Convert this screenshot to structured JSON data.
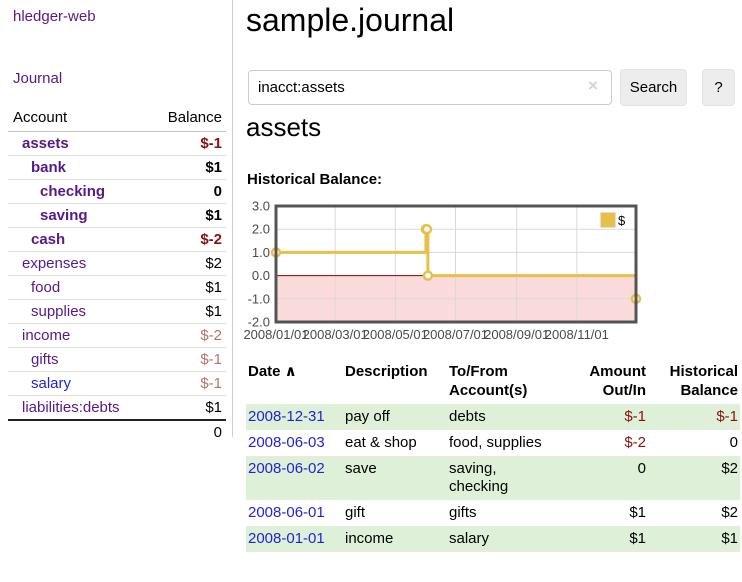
{
  "app": {
    "brand": "hledger-web",
    "nav_journal": "Journal"
  },
  "icons": {
    "clear": "×",
    "sort_asc": "∧"
  },
  "sidebar": {
    "header": {
      "account": "Account",
      "balance": "Balance"
    },
    "rows": [
      {
        "account": "assets",
        "balance": "$-1",
        "indent": 1,
        "bold": true,
        "balance_class": "neg",
        "link_class": "purple"
      },
      {
        "account": "bank",
        "balance": "$1",
        "indent": 2,
        "bold": true,
        "balance_class": "",
        "link_class": "purple"
      },
      {
        "account": "checking",
        "balance": "0",
        "indent": 3,
        "bold": true,
        "balance_class": "",
        "link_class": "purple"
      },
      {
        "account": "saving",
        "balance": "$1",
        "indent": 3,
        "bold": true,
        "balance_class": "",
        "link_class": "purple"
      },
      {
        "account": "cash",
        "balance": "$-2",
        "indent": 2,
        "bold": true,
        "balance_class": "neg",
        "link_class": "purple"
      },
      {
        "account": "expenses",
        "balance": "$2",
        "indent": 1,
        "bold": false,
        "balance_class": "",
        "link_class": "purple"
      },
      {
        "account": "food",
        "balance": "$1",
        "indent": 2,
        "bold": false,
        "balance_class": "",
        "link_class": "purple"
      },
      {
        "account": "supplies",
        "balance": "$1",
        "indent": 2,
        "bold": false,
        "balance_class": "",
        "link_class": "purple"
      },
      {
        "account": "income",
        "balance": "$-2",
        "indent": 1,
        "bold": false,
        "balance_class": "mneg",
        "link_class": "purple"
      },
      {
        "account": "gifts",
        "balance": "$-1",
        "indent": 2,
        "bold": false,
        "balance_class": "mneg",
        "link_class": "purple"
      },
      {
        "account": "salary",
        "balance": "$-1",
        "indent": 2,
        "bold": false,
        "balance_class": "mneg",
        "link_class": "blue"
      },
      {
        "account": "liabilities:debts",
        "balance": "$1",
        "indent": 1,
        "bold": false,
        "balance_class": "",
        "link_class": "purple"
      }
    ],
    "total": "0"
  },
  "main": {
    "title": "sample.journal",
    "search": {
      "value": "inacct:assets",
      "button": "Search",
      "help": "?"
    },
    "account_heading": "assets",
    "chart_heading": "Historical Balance:"
  },
  "chart_data": {
    "type": "line",
    "title": "Historical Balance:",
    "step": true,
    "series": [
      {
        "name": "$",
        "points": [
          {
            "date": "2008-01-01",
            "value": 1
          },
          {
            "date": "2008-06-01",
            "value": 2
          },
          {
            "date": "2008-06-02",
            "value": 2
          },
          {
            "date": "2008-06-03",
            "value": 0
          },
          {
            "date": "2008-12-31",
            "value": -1
          }
        ]
      }
    ],
    "xlim": [
      "2008-01-01",
      "2008-12-31"
    ],
    "ylim": [
      -2,
      3
    ],
    "x_ticks": [
      {
        "date": "2008-01-01",
        "label": "2008/01/01"
      },
      {
        "date": "2008-03-01",
        "label": "2008/03/01"
      },
      {
        "date": "2008-05-01",
        "label": "2008/05/01"
      },
      {
        "date": "2008-07-01",
        "label": "2008/07/01"
      },
      {
        "date": "2008-09-01",
        "label": "2008/09/01"
      },
      {
        "date": "2008-11-01",
        "label": "2008/11/01"
      }
    ],
    "y_ticks": [
      {
        "v": 3,
        "label": "3.0"
      },
      {
        "v": 2,
        "label": "2.0"
      },
      {
        "v": 1,
        "label": "1.0"
      },
      {
        "v": 0,
        "label": "0.0"
      },
      {
        "v": -1,
        "label": "-1.0"
      },
      {
        "v": -2,
        "label": "-2.0"
      }
    ],
    "legend": {
      "label": "$",
      "position": "ne"
    },
    "grid": true,
    "colors": {
      "line": "#e6c04a",
      "marker_fill": "#ffffff",
      "negative_region": "#fadada",
      "zero_line": "#8b0000",
      "gridline": "#d9d9d9",
      "border": "#545454",
      "tick_text": "#4a4a4a"
    }
  },
  "register": {
    "headers": [
      {
        "line1": "Date",
        "line2": "",
        "align": "left",
        "sorted": true
      },
      {
        "line1": "Description",
        "line2": "",
        "align": "left",
        "sorted": false
      },
      {
        "line1": "To/From",
        "line2": "Account(s)",
        "align": "left",
        "sorted": false
      },
      {
        "line1": "Amount",
        "line2": "Out/In",
        "align": "right",
        "sorted": false
      },
      {
        "line1": "Historical",
        "line2": "Balance",
        "align": "right",
        "sorted": false
      }
    ],
    "rows": [
      {
        "date": "2008-12-31",
        "description": "pay off",
        "to_from": "debts",
        "amount": "$-1",
        "balance": "$-1",
        "amount_negative": true,
        "balance_negative": true,
        "shaded": true
      },
      {
        "date": "2008-06-03",
        "description": "eat & shop",
        "to_from": "food, supplies",
        "amount": "$-2",
        "balance": "0",
        "amount_negative": true,
        "balance_negative": false,
        "shaded": false
      },
      {
        "date": "2008-06-02",
        "description": "save",
        "to_from": "saving, checking",
        "amount": "0",
        "balance": "$2",
        "amount_negative": false,
        "balance_negative": false,
        "shaded": true
      },
      {
        "date": "2008-06-01",
        "description": "gift",
        "to_from": "gifts",
        "amount": "$1",
        "balance": "$2",
        "amount_negative": false,
        "balance_negative": false,
        "shaded": false
      },
      {
        "date": "2008-01-01",
        "description": "income",
        "to_from": "salary",
        "amount": "$1",
        "balance": "$1",
        "amount_negative": false,
        "balance_negative": false,
        "shaded": true
      }
    ]
  }
}
